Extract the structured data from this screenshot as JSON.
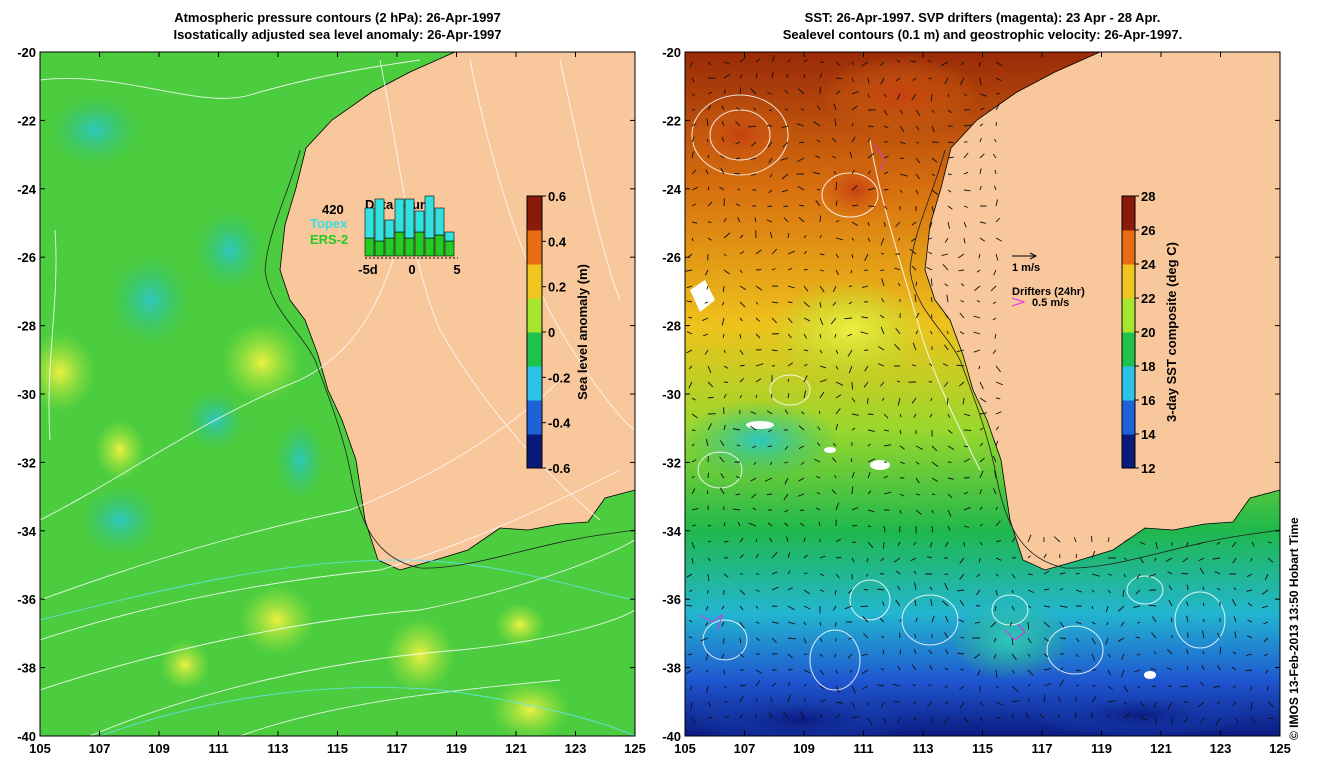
{
  "left_panel": {
    "title_line1": "Atmospheric pressure contours (2 hPa): 26-Apr-1997",
    "title_line2": "Isostatically adjusted sea level anomaly: 26-Apr-1997",
    "colorbar": {
      "label": "Sea level anomaly (m)",
      "ticks": [
        "0.6",
        "0.4",
        "0.2",
        "0",
        "-0.2",
        "-0.4",
        "-0.6"
      ],
      "colors": [
        "#0a1a7a",
        "#1e62d8",
        "#2cc3e8",
        "#1fc24a",
        "#a6e62e",
        "#f1c51f",
        "#e96b12",
        "#8a1a0a"
      ]
    },
    "inset": {
      "title": "Data count",
      "count": "420",
      "legend_topex": "Topex",
      "legend_ers2": "ERS-2",
      "topex_color": "#33e0e0",
      "ers2_color": "#22cc22",
      "xticks": [
        "-5d",
        "0",
        "5"
      ],
      "topex_values": [
        10,
        14,
        6,
        11,
        13,
        7,
        14,
        9,
        3
      ],
      "ers2_values": [
        6,
        5,
        6,
        8,
        6,
        8,
        6,
        7,
        5
      ]
    }
  },
  "right_panel": {
    "title_line1": "SST: 26-Apr-1997. SVP drifters (magenta): 23 Apr - 28 Apr.",
    "title_line2": "Sealevel contours (0.1 m) and geostrophic velocity: 26-Apr-1997.",
    "colorbar": {
      "label": "3-day SST composite (deg C)",
      "ticks": [
        "28",
        "26",
        "24",
        "22",
        "20",
        "18",
        "16",
        "14",
        "12"
      ],
      "colors": [
        "#0a1a7a",
        "#1e62d8",
        "#2cc3e8",
        "#1fc24a",
        "#a6e62e",
        "#f1c51f",
        "#e96b12",
        "#8a1a0a"
      ]
    },
    "velocity_legend": "1 m/s",
    "drifter_legend_title": "Drifters (24hr)",
    "drifter_legend_value": "0.5 m/s",
    "drifter_color": "#e030e0"
  },
  "axes": {
    "x_ticks": [
      "105",
      "107",
      "109",
      "111",
      "113",
      "115",
      "117",
      "119",
      "121",
      "123",
      "125"
    ],
    "y_ticks": [
      "-20",
      "-22",
      "-24",
      "-26",
      "-28",
      "-30",
      "-32",
      "-34",
      "-36",
      "-38",
      "-40"
    ]
  },
  "land_color": "#f9c79c",
  "credit": "© IMOS 13-Feb-2013 13:50 Hobart Time"
}
